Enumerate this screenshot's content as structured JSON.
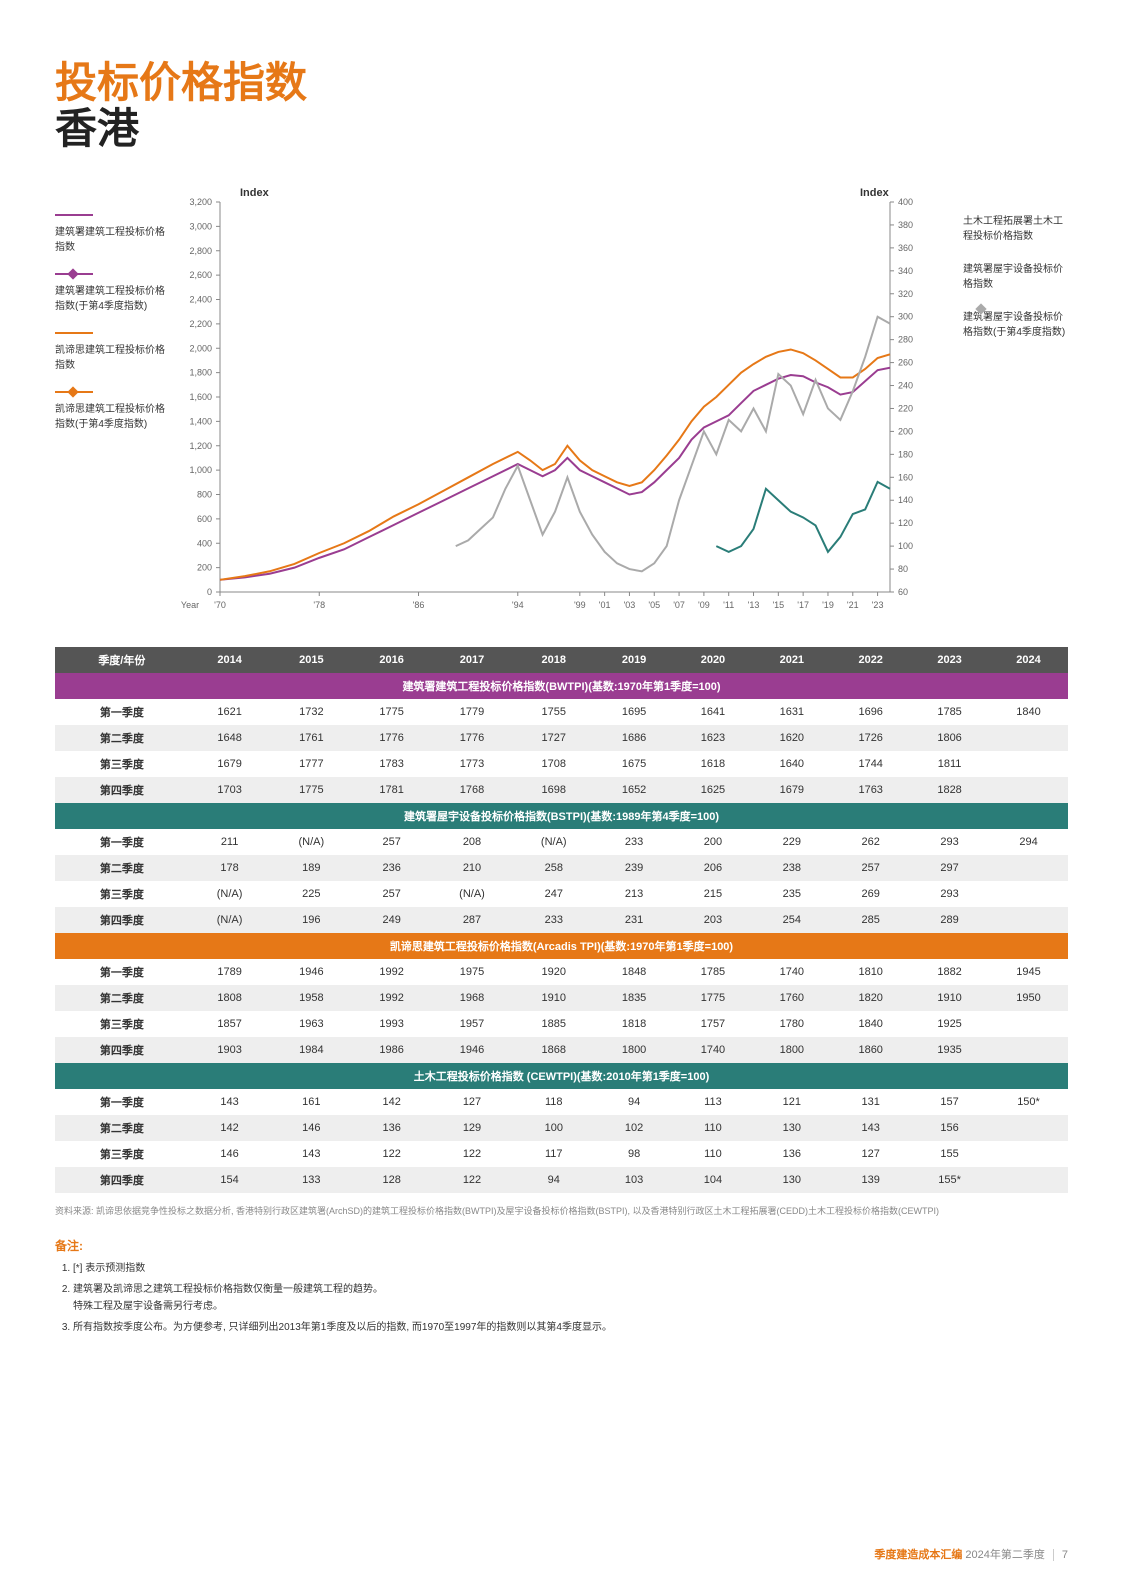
{
  "title_line1": "投标价格指数",
  "title_line2": "香港",
  "chart": {
    "left_axis_label": "Index",
    "right_axis_label": "Index",
    "left_ticks": [
      0,
      200,
      400,
      600,
      800,
      1000,
      1200,
      1400,
      1600,
      1800,
      2000,
      2200,
      2400,
      2600,
      2800,
      3000,
      3200
    ],
    "right_ticks": [
      60,
      80,
      100,
      120,
      140,
      160,
      180,
      200,
      220,
      240,
      260,
      280,
      300,
      320,
      340,
      360,
      380,
      400
    ],
    "x_label": "Year",
    "x_ticks": [
      "'70",
      "'78",
      "'86",
      "'94",
      "'99",
      "'01",
      "'03",
      "'05",
      "'07",
      "'09",
      "'11",
      "'13",
      "'15",
      "'17",
      "'19",
      "'21",
      "'23"
    ],
    "x_positions_index": [
      0,
      8,
      16,
      24,
      29,
      31,
      33,
      35,
      37,
      39,
      41,
      43,
      45,
      47,
      49,
      51,
      53
    ],
    "x_max_idx": 54,
    "series_left": [
      {
        "name": "BWTPI",
        "color": "#9a3d91",
        "marker": false,
        "data": [
          [
            0,
            100
          ],
          [
            2,
            120
          ],
          [
            4,
            150
          ],
          [
            6,
            200
          ],
          [
            8,
            280
          ],
          [
            10,
            350
          ],
          [
            12,
            450
          ],
          [
            14,
            550
          ],
          [
            16,
            650
          ],
          [
            18,
            750
          ],
          [
            20,
            850
          ],
          [
            22,
            950
          ],
          [
            24,
            1050
          ],
          [
            25,
            1000
          ],
          [
            26,
            950
          ],
          [
            27,
            1000
          ],
          [
            28,
            1100
          ],
          [
            29,
            1000
          ],
          [
            30,
            950
          ],
          [
            31,
            900
          ],
          [
            32,
            850
          ],
          [
            33,
            800
          ],
          [
            34,
            820
          ],
          [
            35,
            900
          ],
          [
            36,
            1000
          ],
          [
            37,
            1100
          ],
          [
            38,
            1250
          ],
          [
            39,
            1350
          ],
          [
            40,
            1400
          ],
          [
            41,
            1450
          ],
          [
            42,
            1550
          ],
          [
            43,
            1650
          ],
          [
            44,
            1700
          ],
          [
            45,
            1750
          ],
          [
            46,
            1780
          ],
          [
            47,
            1770
          ],
          [
            48,
            1720
          ],
          [
            49,
            1680
          ],
          [
            50,
            1620
          ],
          [
            51,
            1640
          ],
          [
            52,
            1730
          ],
          [
            53,
            1820
          ],
          [
            54,
            1840
          ]
        ]
      },
      {
        "name": "Arcadis",
        "color": "#e67817",
        "marker": false,
        "data": [
          [
            0,
            100
          ],
          [
            2,
            130
          ],
          [
            4,
            170
          ],
          [
            6,
            230
          ],
          [
            8,
            320
          ],
          [
            10,
            400
          ],
          [
            12,
            500
          ],
          [
            14,
            620
          ],
          [
            16,
            720
          ],
          [
            18,
            830
          ],
          [
            20,
            940
          ],
          [
            22,
            1050
          ],
          [
            24,
            1150
          ],
          [
            25,
            1080
          ],
          [
            26,
            1000
          ],
          [
            27,
            1050
          ],
          [
            28,
            1200
          ],
          [
            29,
            1080
          ],
          [
            30,
            1000
          ],
          [
            31,
            950
          ],
          [
            32,
            900
          ],
          [
            33,
            870
          ],
          [
            34,
            900
          ],
          [
            35,
            1000
          ],
          [
            36,
            1120
          ],
          [
            37,
            1250
          ],
          [
            38,
            1400
          ],
          [
            39,
            1520
          ],
          [
            40,
            1600
          ],
          [
            41,
            1700
          ],
          [
            42,
            1800
          ],
          [
            43,
            1870
          ],
          [
            44,
            1930
          ],
          [
            45,
            1970
          ],
          [
            46,
            1990
          ],
          [
            47,
            1960
          ],
          [
            48,
            1900
          ],
          [
            49,
            1830
          ],
          [
            50,
            1760
          ],
          [
            51,
            1760
          ],
          [
            52,
            1830
          ],
          [
            53,
            1920
          ],
          [
            54,
            1950
          ]
        ]
      }
    ],
    "series_right": [
      {
        "name": "BSTPI",
        "color": "#aaa",
        "marker": false,
        "data": [
          [
            19,
            100
          ],
          [
            20,
            105
          ],
          [
            21,
            115
          ],
          [
            22,
            125
          ],
          [
            23,
            150
          ],
          [
            24,
            170
          ],
          [
            25,
            140
          ],
          [
            26,
            110
          ],
          [
            27,
            130
          ],
          [
            28,
            160
          ],
          [
            29,
            130
          ],
          [
            30,
            110
          ],
          [
            31,
            95
          ],
          [
            32,
            85
          ],
          [
            33,
            80
          ],
          [
            34,
            78
          ],
          [
            35,
            85
          ],
          [
            36,
            100
          ],
          [
            37,
            140
          ],
          [
            38,
            170
          ],
          [
            39,
            200
          ],
          [
            40,
            180
          ],
          [
            41,
            210
          ],
          [
            42,
            200
          ],
          [
            43,
            220
          ],
          [
            44,
            200
          ],
          [
            45,
            250
          ],
          [
            46,
            240
          ],
          [
            47,
            215
          ],
          [
            48,
            245
          ],
          [
            49,
            220
          ],
          [
            50,
            210
          ],
          [
            51,
            235
          ],
          [
            52,
            265
          ],
          [
            53,
            300
          ],
          [
            54,
            294
          ]
        ]
      },
      {
        "name": "CEWTPI",
        "color": "#2a7d78",
        "marker": false,
        "data": [
          [
            40,
            100
          ],
          [
            41,
            95
          ],
          [
            42,
            100
          ],
          [
            43,
            115
          ],
          [
            44,
            150
          ],
          [
            45,
            140
          ],
          [
            46,
            130
          ],
          [
            47,
            125
          ],
          [
            48,
            118
          ],
          [
            49,
            95
          ],
          [
            50,
            108
          ],
          [
            51,
            128
          ],
          [
            52,
            132
          ],
          [
            53,
            156
          ],
          [
            54,
            150
          ]
        ]
      }
    ]
  },
  "left_legend": [
    {
      "style": "lg-purple",
      "label": "建筑署建筑工程投标价格指数"
    },
    {
      "style": "lg-purple-dia",
      "label": "建筑署建筑工程投标价格指数(于第4季度指数)"
    },
    {
      "style": "lg-orange",
      "label": "凯谛思建筑工程投标价格指数"
    },
    {
      "style": "lg-orange-dia",
      "label": "凯谛思建筑工程投标价格指数(于第4季度指数)"
    }
  ],
  "right_legend": [
    {
      "style": "lg-teal",
      "label": "土木工程拓展署土木工程投标价格指数"
    },
    {
      "style": "lg-grey",
      "label": "建筑署屋宇设备投标价格指数"
    },
    {
      "style": "lg-grey-dia",
      "label": "建筑署屋宇设备投标价格指数(于第4季度指数)"
    }
  ],
  "table": {
    "header": [
      "季度/年份",
      "2014",
      "2015",
      "2016",
      "2017",
      "2018",
      "2019",
      "2020",
      "2021",
      "2022",
      "2023",
      "2024"
    ],
    "sections": [
      {
        "class": "sec-purple",
        "title": "建筑署建筑工程投标价格指数(BWTPI)(基数:1970年第1季度=100)",
        "rows": [
          [
            "第一季度",
            "1621",
            "1732",
            "1775",
            "1779",
            "1755",
            "1695",
            "1641",
            "1631",
            "1696",
            "1785",
            "1840"
          ],
          [
            "第二季度",
            "1648",
            "1761",
            "1776",
            "1776",
            "1727",
            "1686",
            "1623",
            "1620",
            "1726",
            "1806",
            ""
          ],
          [
            "第三季度",
            "1679",
            "1777",
            "1783",
            "1773",
            "1708",
            "1675",
            "1618",
            "1640",
            "1744",
            "1811",
            ""
          ],
          [
            "第四季度",
            "1703",
            "1775",
            "1781",
            "1768",
            "1698",
            "1652",
            "1625",
            "1679",
            "1763",
            "1828",
            ""
          ]
        ]
      },
      {
        "class": "sec-teal",
        "title": "建筑署屋宇设备投标价格指数(BSTPI)(基数:1989年第4季度=100)",
        "rows": [
          [
            "第一季度",
            "211",
            "(N/A)",
            "257",
            "208",
            "(N/A)",
            "233",
            "200",
            "229",
            "262",
            "293",
            "294"
          ],
          [
            "第二季度",
            "178",
            "189",
            "236",
            "210",
            "258",
            "239",
            "206",
            "238",
            "257",
            "297",
            ""
          ],
          [
            "第三季度",
            "(N/A)",
            "225",
            "257",
            "(N/A)",
            "247",
            "213",
            "215",
            "235",
            "269",
            "293",
            ""
          ],
          [
            "第四季度",
            "(N/A)",
            "196",
            "249",
            "287",
            "233",
            "231",
            "203",
            "254",
            "285",
            "289",
            ""
          ]
        ]
      },
      {
        "class": "sec-orange",
        "title": "凯谛思建筑工程投标价格指数(Arcadis TPI)(基数:1970年第1季度=100)",
        "rows": [
          [
            "第一季度",
            "1789",
            "1946",
            "1992",
            "1975",
            "1920",
            "1848",
            "1785",
            "1740",
            "1810",
            "1882",
            "1945"
          ],
          [
            "第二季度",
            "1808",
            "1958",
            "1992",
            "1968",
            "1910",
            "1835",
            "1775",
            "1760",
            "1820",
            "1910",
            "1950"
          ],
          [
            "第三季度",
            "1857",
            "1963",
            "1993",
            "1957",
            "1885",
            "1818",
            "1757",
            "1780",
            "1840",
            "1925",
            ""
          ],
          [
            "第四季度",
            "1903",
            "1984",
            "1986",
            "1946",
            "1868",
            "1800",
            "1740",
            "1800",
            "1860",
            "1935",
            ""
          ]
        ]
      },
      {
        "class": "sec-teal2",
        "title": "土木工程投标价格指数 (CEWTPI)(基数:2010年第1季度=100)",
        "rows": [
          [
            "第一季度",
            "143",
            "161",
            "142",
            "127",
            "118",
            "94",
            "113",
            "121",
            "131",
            "157",
            "150*"
          ],
          [
            "第二季度",
            "142",
            "146",
            "136",
            "129",
            "100",
            "102",
            "110",
            "130",
            "143",
            "156",
            ""
          ],
          [
            "第三季度",
            "146",
            "143",
            "122",
            "122",
            "117",
            "98",
            "110",
            "136",
            "127",
            "155",
            ""
          ],
          [
            "第四季度",
            "154",
            "133",
            "128",
            "122",
            "94",
            "103",
            "104",
            "130",
            "139",
            "155*",
            ""
          ]
        ]
      }
    ]
  },
  "source": "资料来源: 凯谛思依据竞争性投标之数据分析, 香港特别行政区建筑署(ArchSD)的建筑工程投标价格指数(BWTPI)及屋宇设备投标价格指数(BSTPI), 以及香港特别行政区土木工程拓展署(CEDD)土木工程投标价格指数(CEWTPI)",
  "notes_hdr": "备注:",
  "notes": [
    "[*] 表示预测指数",
    "建筑署及凯谛思之建筑工程投标价格指数仅衡量一般建筑工程的趋势。\n特殊工程及屋宇设备需另行考虑。",
    "所有指数按季度公布。为方便参考, 只详细列出2013年第1季度及以后的指数, 而1970至1997年的指数则以其第4季度显示。"
  ],
  "footer": {
    "orange": "季度建造成本汇编",
    "grey": " 2024年第二季度",
    "page": "7"
  }
}
